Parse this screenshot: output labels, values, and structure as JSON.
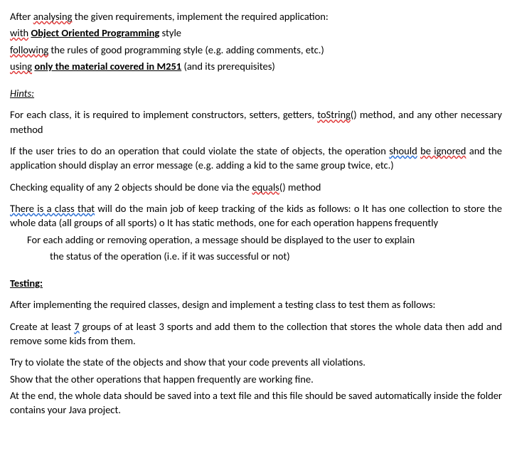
{
  "intro": {
    "line1": {
      "t1": "After ",
      "analysing": "analysing",
      "t2": " the given requirements, implement the required application:"
    },
    "line2": {
      "with": "with",
      "space": " ",
      "oop": "Object Oriented Programming",
      "t2": " style"
    },
    "line3": {
      "following": "following",
      "t2": " the rules of good programming style (e.g. adding comments, etc.)"
    },
    "line4": {
      "using": "using",
      "space": " ",
      "material": "only the material covered in M251",
      "t2": " (and its prerequisites)"
    }
  },
  "hints": {
    "heading": "Hints:",
    "p1": {
      "t1": "For each class, it is required to implement constructors, setters, getters, ",
      "toString": "toString",
      "t2": "() method, and any other necessary method"
    },
    "p2": {
      "t1": "If the user tries to do an operation that could violate the state of objects, the operation ",
      "should": "should",
      "space": " ",
      "beignored": "be ignored",
      "t2": " and the application should display an error message (e.g. adding a kid to the same group twice, etc.)"
    },
    "p3": {
      "t1": "Checking equality of any 2 objects should be done via the ",
      "equals": "equals",
      "t2": "() method"
    },
    "p4": {
      "thereis": "There is a class that",
      "t2": " will do the main job of keep tracking of the kids as follows: o It has one collection to store the whole data (all groups of all sports) o It has static methods, one for each operation happens frequently"
    },
    "p5": "For each adding or removing operation, a message should be displayed to the user to explain",
    "p6": "the status of the operation (i.e. if it was successful or not)"
  },
  "testing": {
    "heading": "Testing:",
    "p1": "After implementing the required classes, design and implement a testing class to test them as follows:",
    "p2": {
      "t1": "Create at least ",
      "seven": "7",
      "t2": " groups of at least 3 sports and add them to the collection that stores the whole data then add and remove some kids from them."
    },
    "p3": "Try to violate the state of the objects and show that your code prevents all violations.",
    "p4": "Show that the other operations that happen frequently are working fine.",
    "p5": "At the end, the whole data should be saved into a text file and this file should be saved automatically inside the folder contains your Java project."
  }
}
